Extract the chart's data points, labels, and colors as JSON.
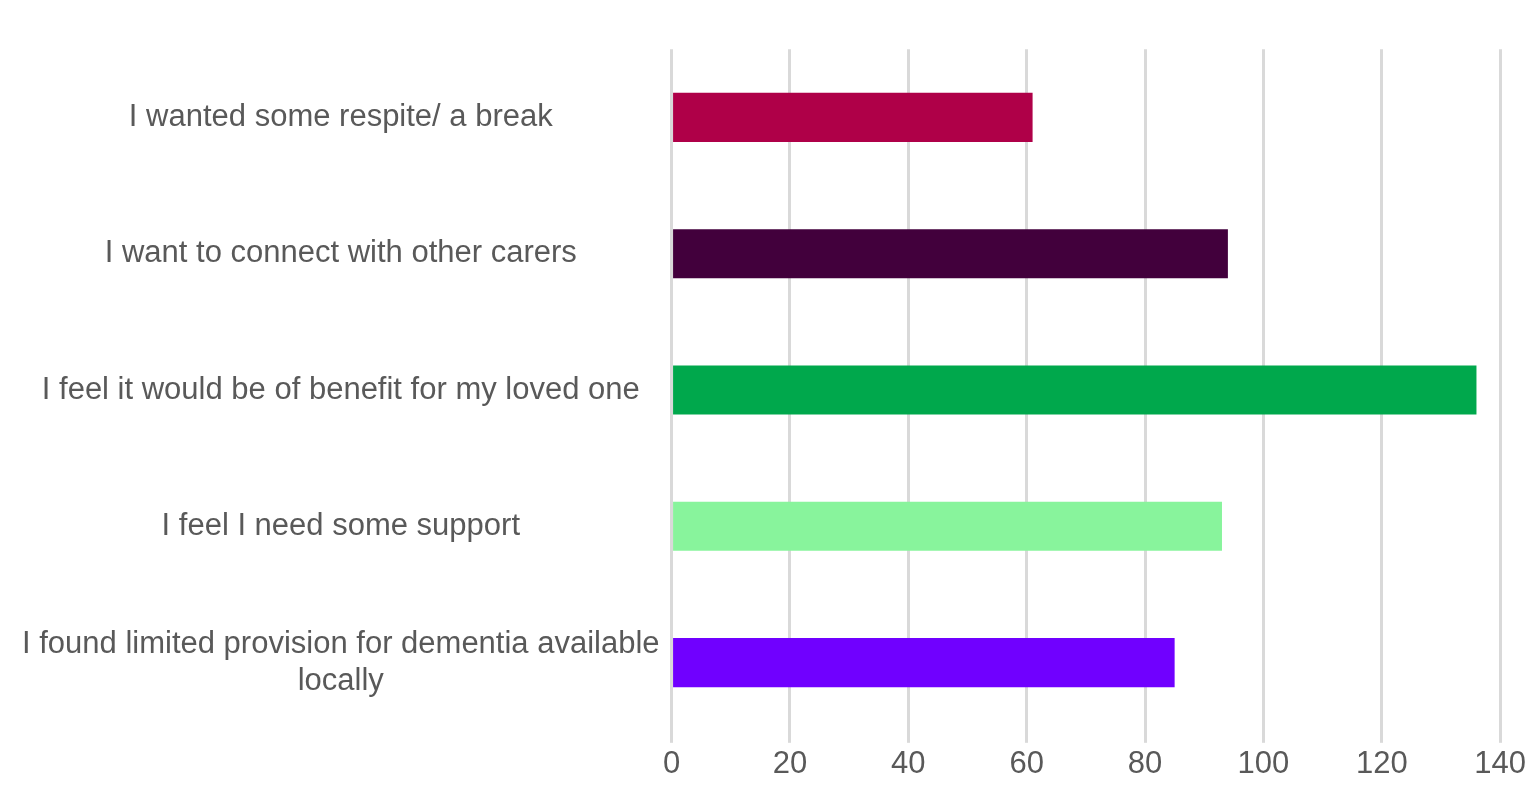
{
  "chart_data": {
    "type": "bar",
    "orientation": "horizontal",
    "categories": [
      "I wanted some respite/ a break",
      "I want to connect with other carers",
      "I feel it would be of benefit for my loved one",
      "I feel I need some support",
      "I found limited provision for dementia available locally"
    ],
    "values": [
      61,
      94,
      136,
      93,
      85
    ],
    "colors": [
      "#af0048",
      "#42003c",
      "#00a84c",
      "#88f49c",
      "#7000ff"
    ],
    "xlim": [
      0,
      140
    ],
    "xticks": [
      0,
      20,
      40,
      60,
      80,
      100,
      120,
      140
    ],
    "grid": "x",
    "legend": false
  }
}
